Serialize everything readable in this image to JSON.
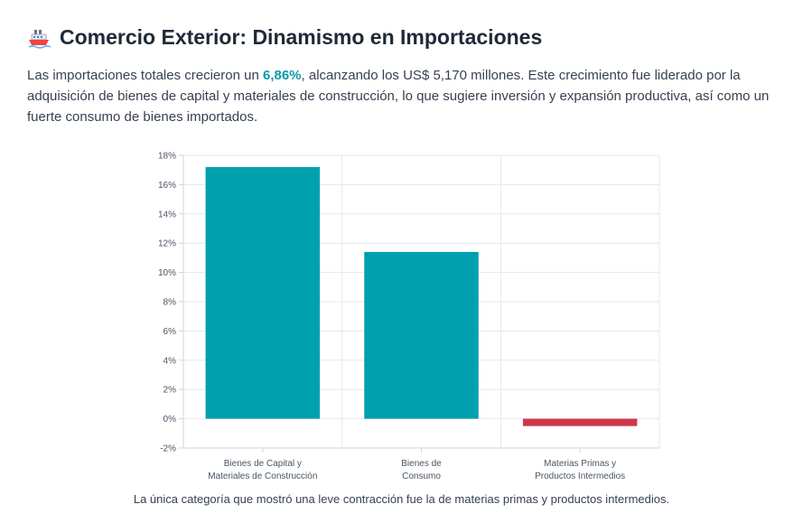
{
  "header": {
    "title": "Comercio Exterior: Dinamismo en Importaciones",
    "icon": "ship-icon"
  },
  "intro": {
    "before": "Las importaciones totales crecieron un ",
    "highlight": "6,86%",
    "after": ", alcanzando los US$ 5,170 millones. Este crecimiento fue liderado por la adquisición de bienes de capital y materiales de construcción, lo que sugiere inversión y expansión productiva, así como un fuerte consumo de bienes importados."
  },
  "caption": "La única categoría que mostró una leve contracción fue la de materias primas y productos intermedios.",
  "colors": {
    "positive": "#00a0ae",
    "negative": "#d0374a",
    "highlight": "#0e9aa7"
  },
  "chart_data": {
    "type": "bar",
    "categories": [
      [
        "Bienes de Capital y",
        "Materiales de Construcción"
      ],
      [
        "Bienes de",
        "Consumo"
      ],
      [
        "Materias Primas y",
        "Productos Intermedios"
      ]
    ],
    "values": [
      17.2,
      11.4,
      -0.5
    ],
    "ylim": [
      -2,
      18
    ],
    "yticks": [
      -2,
      0,
      2,
      4,
      6,
      8,
      10,
      12,
      14,
      16,
      18
    ],
    "ytick_format": "%",
    "grid": true,
    "legend": "none"
  }
}
